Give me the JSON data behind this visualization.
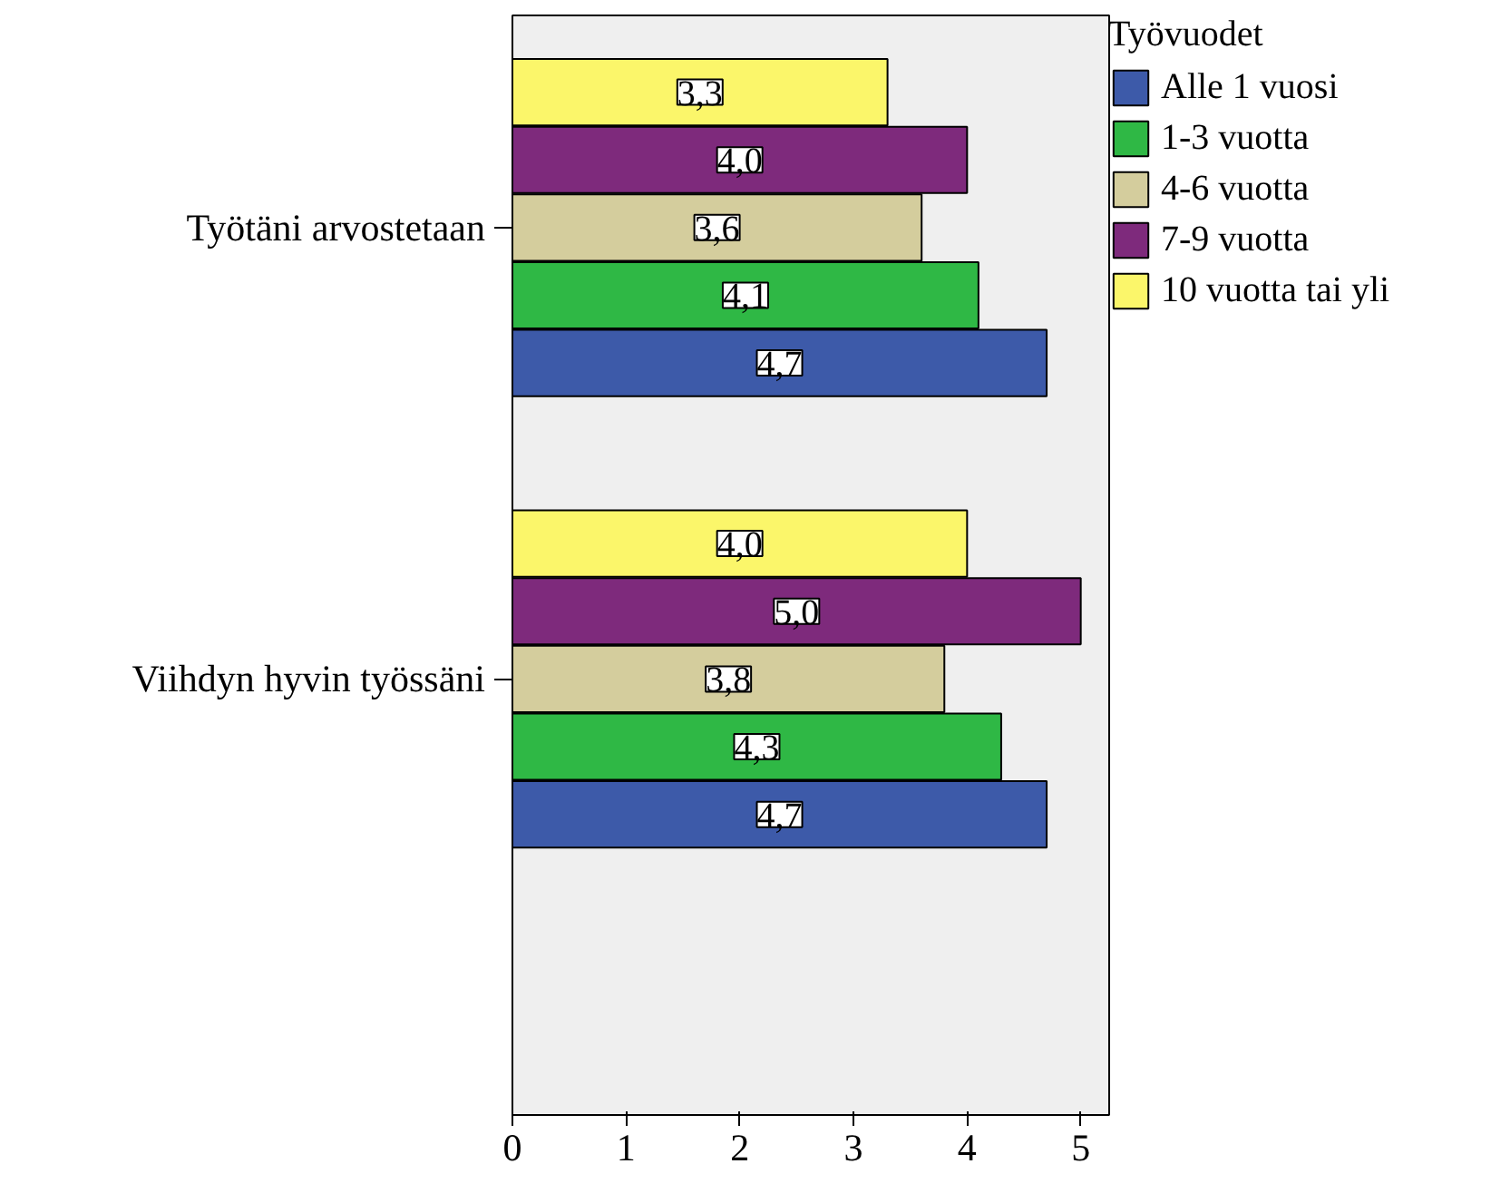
{
  "chart_data": {
    "type": "bar",
    "orientation": "horizontal",
    "categories": [
      "Työtäni arvostetaan",
      "Viihdyn hyvin työssäni"
    ],
    "legend_title": "Työvuodet",
    "legend": "right",
    "grid": false,
    "xlim": [
      0,
      5.25
    ],
    "xticks": [
      0,
      1,
      2,
      3,
      4,
      5
    ],
    "series": [
      {
        "name": "Alle 1 vuosi",
        "color": "#3d5aa9",
        "values": [
          4.7,
          4.7
        ],
        "value_labels": [
          "4,7",
          "4,7"
        ]
      },
      {
        "name": "1-3 vuotta",
        "color": "#2fb845",
        "values": [
          4.1,
          4.3
        ],
        "value_labels": [
          "4,1",
          "4,3"
        ]
      },
      {
        "name": "4-6 vuotta",
        "color": "#d4cd9d",
        "values": [
          3.6,
          3.8
        ],
        "value_labels": [
          "3,6",
          "3,8"
        ]
      },
      {
        "name": "7-9 vuotta",
        "color": "#7e2a7c",
        "values": [
          4.0,
          5.0
        ],
        "value_labels": [
          "4,0",
          "5,0"
        ]
      },
      {
        "name": "10 vuotta tai yli",
        "color": "#fbf66a",
        "values": [
          3.3,
          4.0
        ],
        "value_labels": [
          "3,3",
          "4,0"
        ]
      }
    ]
  }
}
